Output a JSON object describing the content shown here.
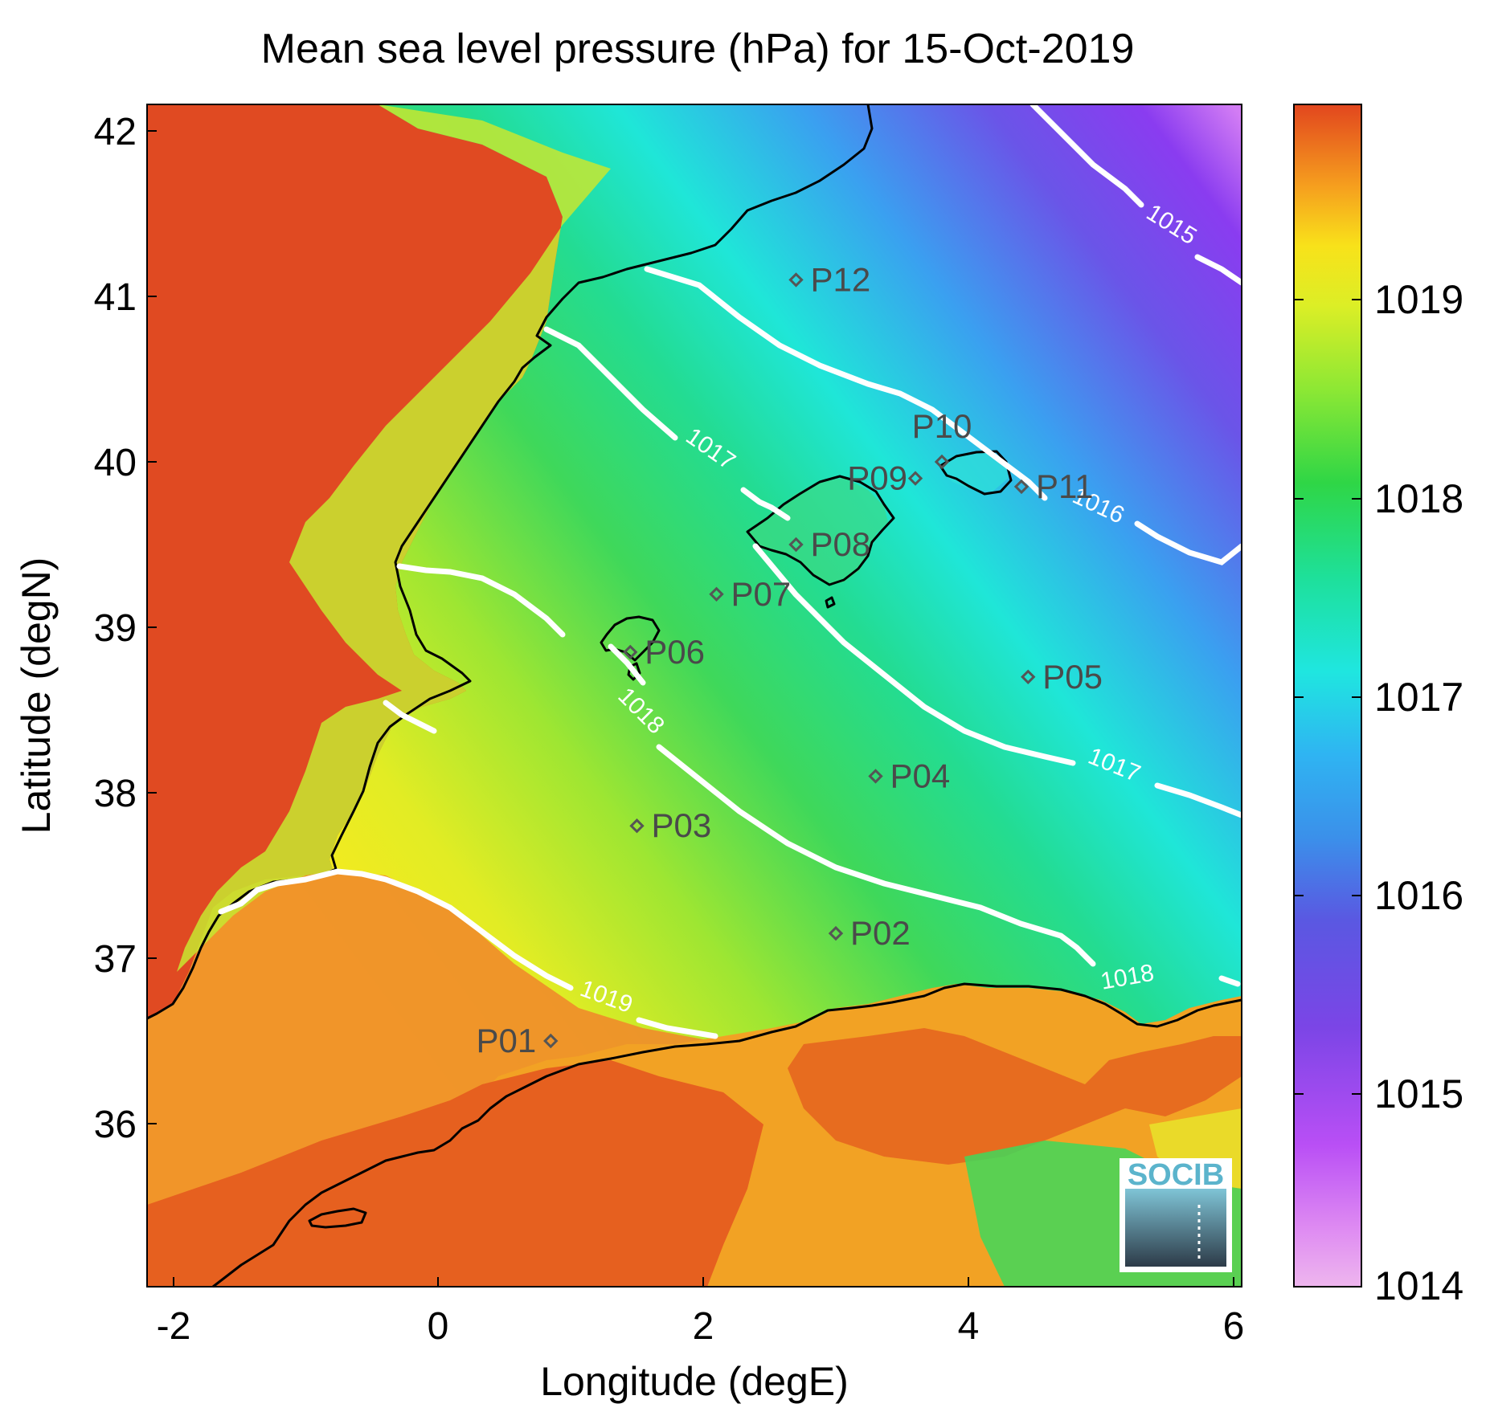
{
  "title": "Mean sea level pressure (hPa) for 15-Oct-2019",
  "xlabel": "Longitude (degE)",
  "ylabel": "Latitude (degN)",
  "logo": "SOCIB",
  "x_ticks": [
    "-2",
    "0",
    "2",
    "4",
    "6"
  ],
  "y_ticks": [
    "42",
    "41",
    "40",
    "39",
    "38",
    "37",
    "36"
  ],
  "colorbar": {
    "ticks": [
      "1019",
      "1018",
      "1017",
      "1016",
      "1015",
      "1014"
    ],
    "range": [
      1014,
      1020
    ],
    "colors": [
      "#e78be6",
      "#b84df4",
      "#6a43e0",
      "#3b86e8",
      "#1fe9e0",
      "#2bd85c",
      "#b6e830",
      "#f8e71a",
      "#f48a1d",
      "#e24a1e"
    ]
  },
  "contour_labels": [
    "1015",
    "1016",
    "1017",
    "1017",
    "1018",
    "1018",
    "1019"
  ],
  "points": [
    {
      "name": "P01",
      "lon": 0.85,
      "lat": 36.5
    },
    {
      "name": "P02",
      "lon": 3.0,
      "lat": 37.15
    },
    {
      "name": "P03",
      "lon": 1.5,
      "lat": 37.8
    },
    {
      "name": "P04",
      "lon": 3.3,
      "lat": 38.1
    },
    {
      "name": "P05",
      "lon": 4.45,
      "lat": 38.7
    },
    {
      "name": "P06",
      "lon": 1.45,
      "lat": 38.85
    },
    {
      "name": "P07",
      "lon": 2.1,
      "lat": 39.2
    },
    {
      "name": "P08",
      "lon": 2.7,
      "lat": 39.5
    },
    {
      "name": "P09",
      "lon": 3.6,
      "lat": 39.9
    },
    {
      "name": "P10",
      "lon": 3.8,
      "lat": 40.0
    },
    {
      "name": "P11",
      "lon": 4.4,
      "lat": 39.85
    },
    {
      "name": "P12",
      "lon": 2.7,
      "lat": 41.1
    }
  ],
  "chart_data": {
    "type": "heatmap",
    "title": "Mean sea level pressure (hPa) for 15-Oct-2019",
    "xlabel": "Longitude (degE)",
    "ylabel": "Latitude (degN)",
    "xlim": [
      -2.2,
      6.05
    ],
    "ylim": [
      35.15,
      42.2
    ],
    "colorbar_range": [
      1014,
      1020
    ],
    "contour_levels": [
      1015,
      1016,
      1017,
      1018,
      1019
    ]
  }
}
